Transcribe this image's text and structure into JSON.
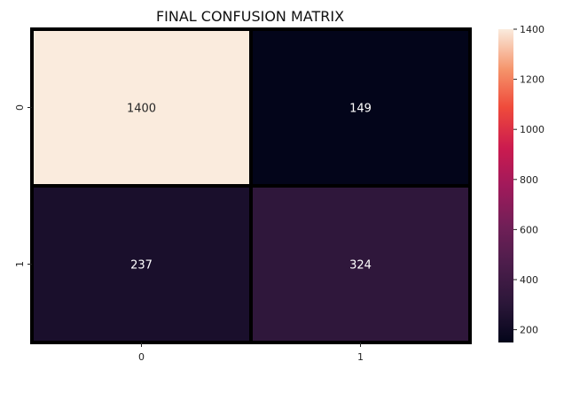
{
  "chart_data": {
    "type": "heatmap",
    "title": "FINAL CONFUSION MATRIX",
    "xlabel": "",
    "ylabel": "",
    "x_categories": [
      "0",
      "1"
    ],
    "y_categories": [
      "0",
      "1"
    ],
    "values": [
      [
        1400,
        149
      ],
      [
        237,
        324
      ]
    ],
    "colormap": "rocket",
    "colorbar": {
      "range": [
        149,
        1400
      ],
      "ticks": [
        200,
        400,
        600,
        800,
        1000,
        1200,
        1400
      ]
    },
    "cell_border_color": "#000000",
    "grid": false
  }
}
